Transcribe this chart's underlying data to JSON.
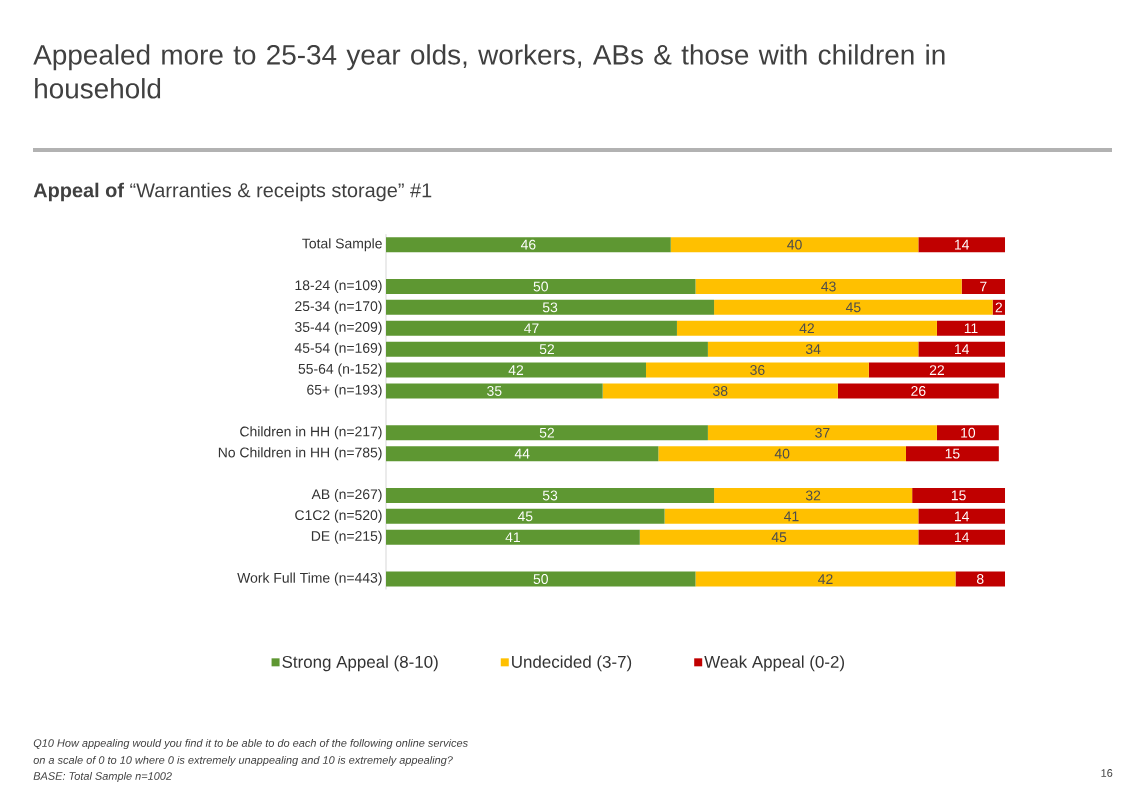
{
  "chart_data": {
    "type": "bar",
    "orientation": "horizontal",
    "stacked": true,
    "title": "Appealed more to 25-34 year olds, workers, ABs & those with children in household",
    "subtitle": "**Appeal of** “Warranties & receipts storage” #1",
    "categories": [
      "Total Sample",
      null,
      "18-24 (n=109)",
      "25-34 (n=170)",
      "35-44 (n=209)",
      "45-54 (n=169)",
      "55-64 (n-152)",
      "65+ (n=193)",
      null,
      "Children in HH (n=217)",
      "No Children in HH (n=785)",
      null,
      "AB (n=267)",
      "C1C2 (n=520)",
      "DE (n=215)",
      null,
      "Work Full Time (n=443)"
    ],
    "series": [
      {
        "name": "Strong Appeal (8-10)",
        "color": "#5e9732",
        "values": [
          46,
          null,
          50,
          53,
          47,
          52,
          42,
          35,
          null,
          52,
          44,
          null,
          53,
          45,
          41,
          null,
          50
        ]
      },
      {
        "name": "Undecided (3-7)",
        "color": "#ffc000",
        "values": [
          40,
          null,
          43,
          45,
          42,
          34,
          36,
          38,
          null,
          37,
          40,
          null,
          32,
          41,
          45,
          null,
          42
        ]
      },
      {
        "name": "Weak Appeal (0-2)",
        "color": "#c00000",
        "values": [
          14,
          null,
          7,
          2,
          11,
          14,
          22,
          26,
          null,
          10,
          15,
          null,
          15,
          14,
          14,
          null,
          8
        ]
      }
    ],
    "tick_labels": "y",
    "data_labels": true,
    "legend": "bottom",
    "annotations": [
      "Q10 How appealing would you find it to be able to do each of the following online services",
      "on a scale of 0 to 10 where 0 is extremely unappealing and 10 is extremely appealing?",
      "BASE: Total Sample n=1002",
      "16"
    ]
  }
}
